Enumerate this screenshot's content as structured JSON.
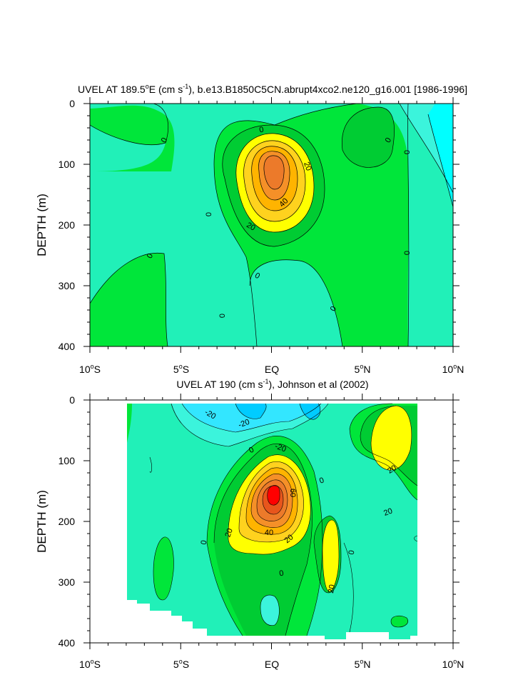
{
  "chart_data": [
    {
      "type": "contour",
      "title": "UVEL AT 189.5°E (cm s⁻¹), b.e13.B1850C5CN.abrupt4xco2.ne120_g16.001 [1986-1996]",
      "title_parts": {
        "a": "UVEL AT 189.5",
        "deg": "o",
        "b": "E (cm s",
        "sup": "-1",
        "c": "), b.e13.B1850C5CN.abrupt4xco2.ne120_g16.001 [1986-1996]"
      },
      "xlabel": "",
      "ylabel": "DEPTH (m)",
      "xlim": [
        -10,
        10
      ],
      "ylim": [
        400,
        0
      ],
      "x_ticks": [
        {
          "value": -10,
          "num": "10",
          "hemi": "S"
        },
        {
          "value": -5,
          "num": "5",
          "hemi": "S"
        },
        {
          "value": 0,
          "num": "EQ",
          "hemi": ""
        },
        {
          "value": 5,
          "num": "5",
          "hemi": "N"
        },
        {
          "value": 10,
          "num": "10",
          "hemi": "N"
        }
      ],
      "y_ticks": [
        "0",
        "100",
        "200",
        "300",
        "400"
      ],
      "contour_interval": 10,
      "core": {
        "lat": 0.0,
        "depth": 120,
        "max_speed_label": "40"
      },
      "contour_labels": [
        "0",
        "0",
        "0",
        "0",
        "0",
        "0",
        "0",
        "0",
        "0",
        "0",
        "20",
        "20",
        "40"
      ]
    },
    {
      "type": "contour",
      "title": "UVEL AT 190 (cm s⁻¹), Johnson et al (2002)",
      "title_parts": {
        "a": "UVEL AT 190 (cm s",
        "sup": "-1",
        "b": "), Johnson et al (2002)"
      },
      "xlabel": "",
      "ylabel": "DEPTH (m)",
      "xlim": [
        -10,
        10
      ],
      "ylim": [
        400,
        0
      ],
      "x_ticks": [
        {
          "value": -10,
          "num": "10",
          "hemi": "S"
        },
        {
          "value": -5,
          "num": "5",
          "hemi": "S"
        },
        {
          "value": 0,
          "num": "EQ",
          "hemi": ""
        },
        {
          "value": 5,
          "num": "5",
          "hemi": "N"
        },
        {
          "value": 10,
          "num": "10",
          "hemi": "N"
        }
      ],
      "y_ticks": [
        "0",
        "100",
        "200",
        "300",
        "400"
      ],
      "contour_interval": 10,
      "data_extent_lat": [
        -8,
        8
      ],
      "core": {
        "lat": 0.0,
        "depth": 150,
        "max_speed_label": "60"
      },
      "contour_labels": [
        "-20",
        "-20",
        "-20",
        "0",
        "0",
        "0",
        "0",
        "0",
        "20",
        "20",
        "20",
        "20",
        "20",
        "40",
        "60"
      ]
    }
  ]
}
